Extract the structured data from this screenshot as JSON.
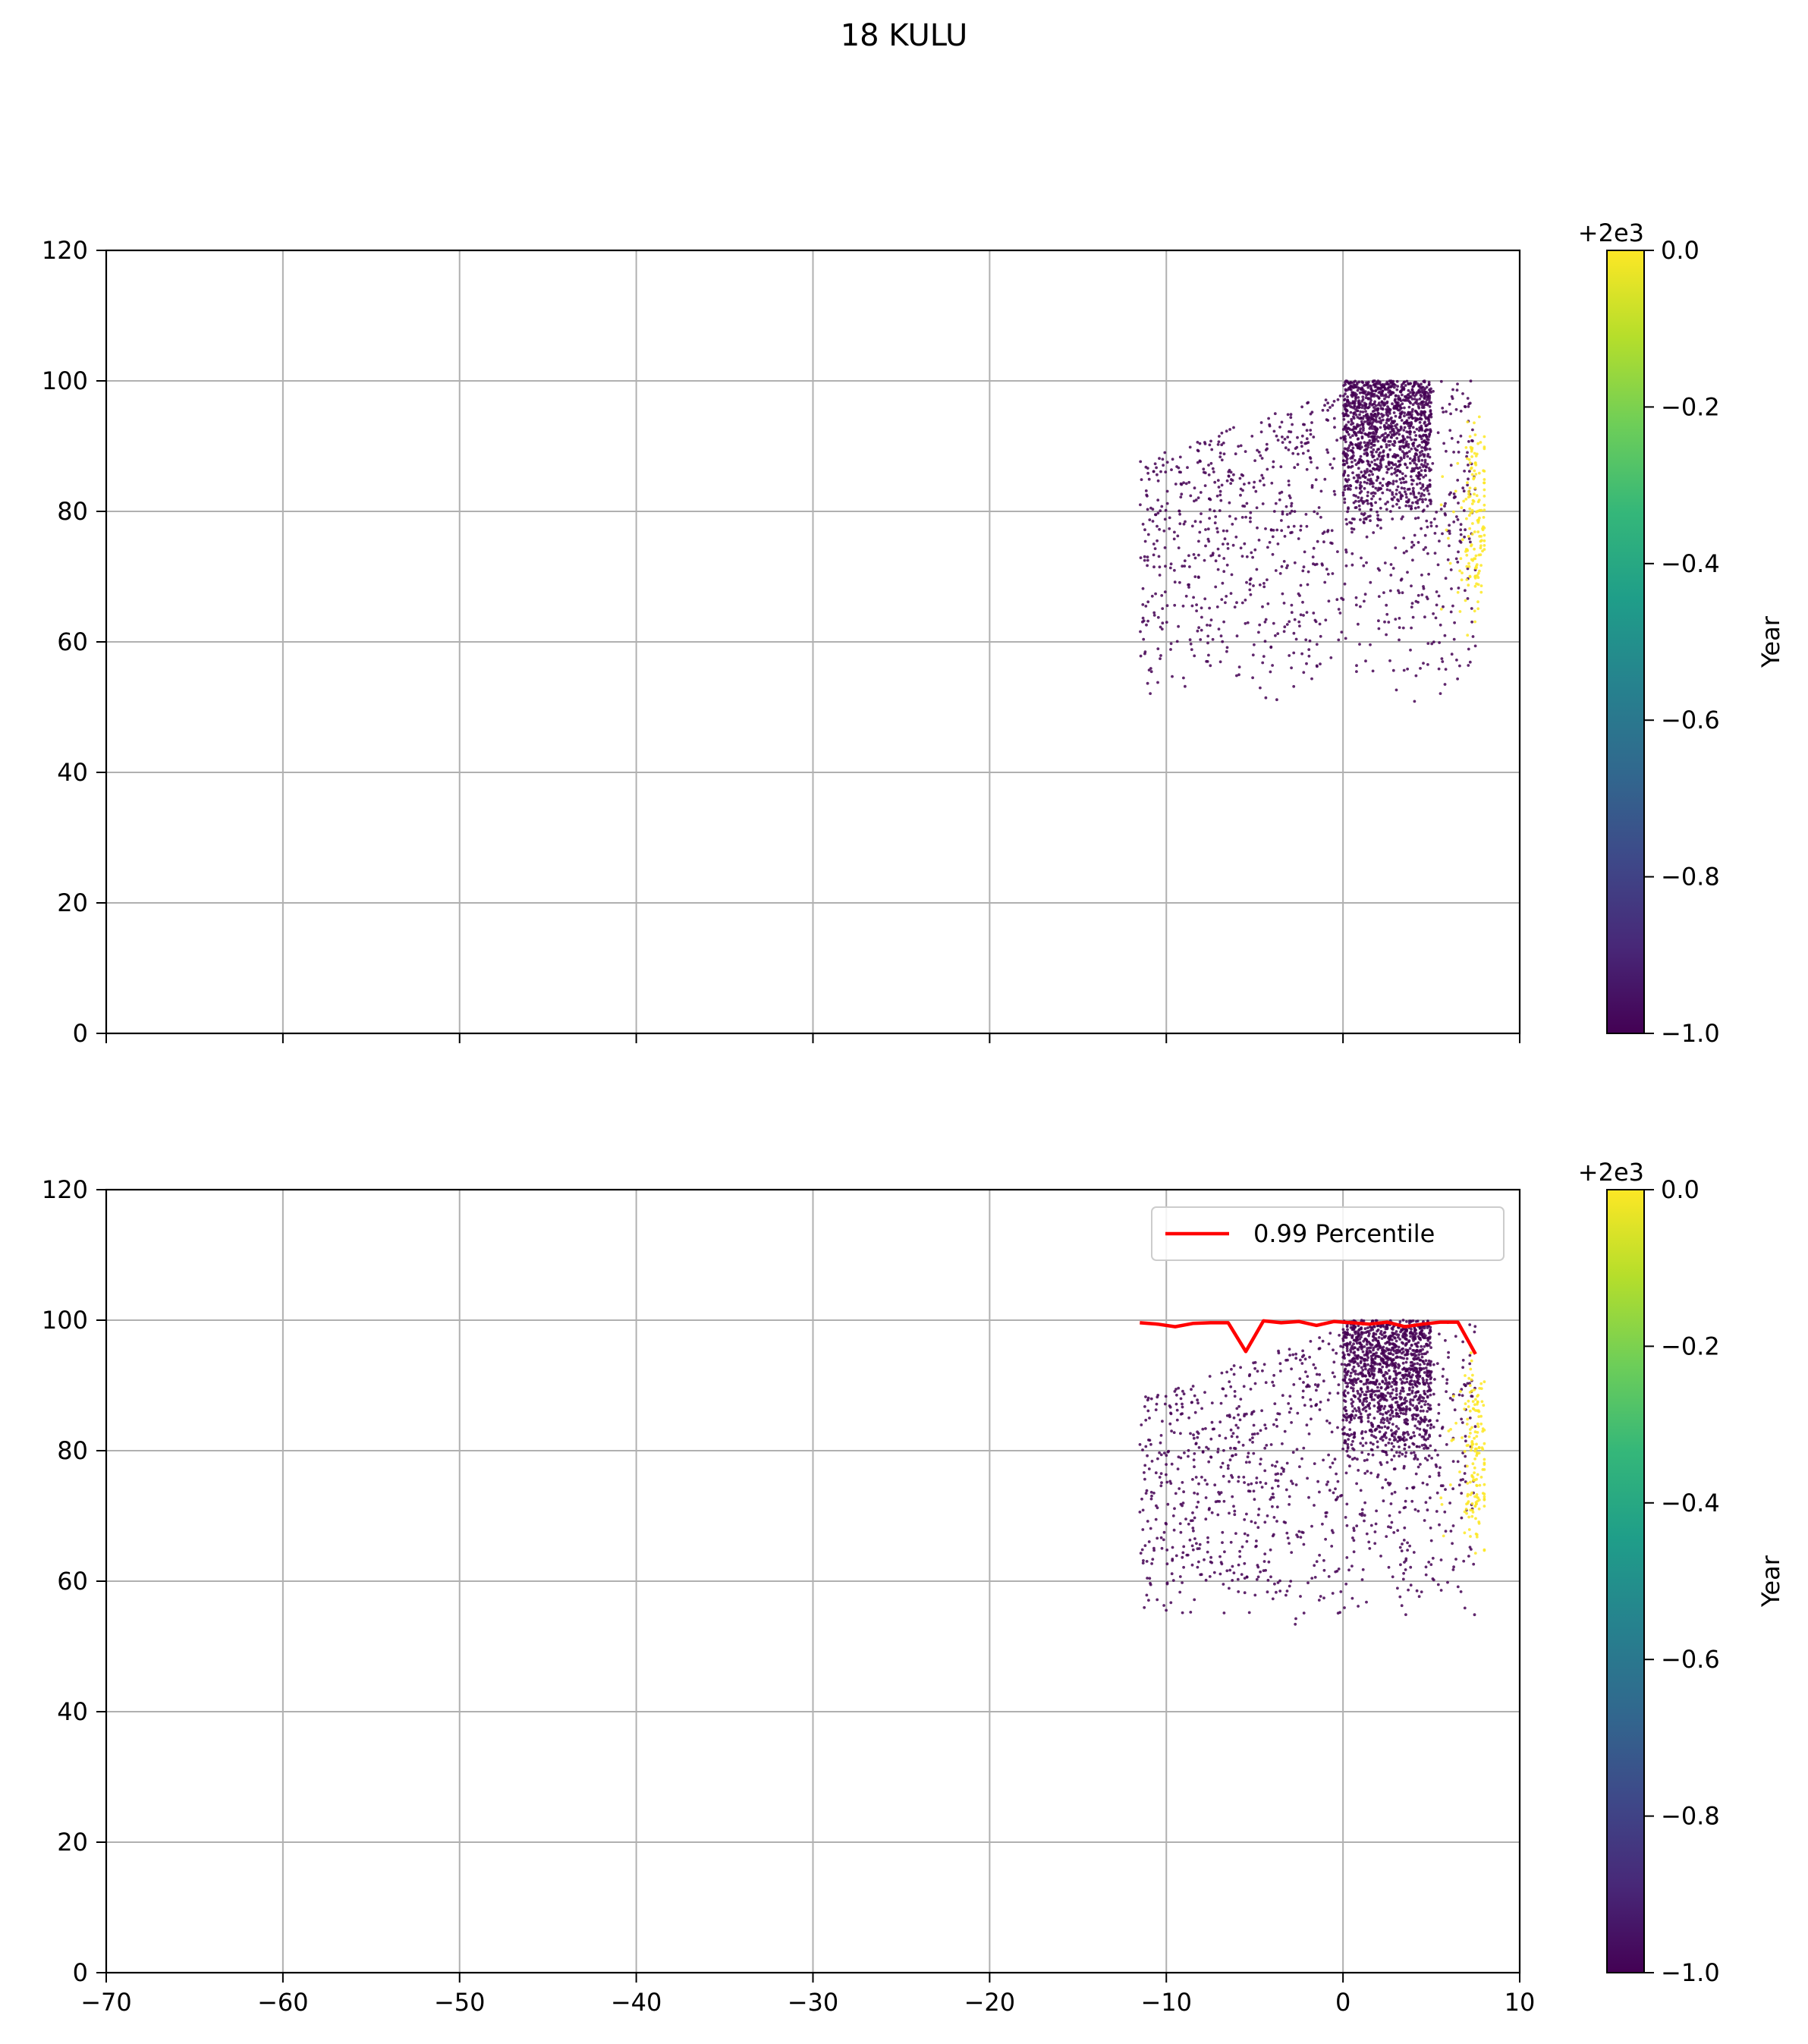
{
  "figure": {
    "suptitle": "18 KULU"
  },
  "colors": {
    "viridis": [
      "#440154",
      "#482878",
      "#3e4989",
      "#31688e",
      "#26828e",
      "#1f9e89",
      "#35b779",
      "#6ece58",
      "#b5de2b",
      "#fde725"
    ],
    "percentile_line": "#ff0000",
    "grid": "#b0b0b0"
  },
  "chart_data": [
    {
      "type": "scatter",
      "panel": "top",
      "title": "",
      "xlabel": "",
      "ylabel": "",
      "xlim": [
        -70,
        10
      ],
      "ylim": [
        0,
        120
      ],
      "xticks": [
        -70,
        -60,
        -50,
        -40,
        -30,
        -20,
        -10,
        0,
        10
      ],
      "yticks": [
        0,
        20,
        40,
        60,
        80,
        100,
        120
      ],
      "xtick_labels_visible": false,
      "grid": true,
      "point_groups": [
        {
          "color_value": -1.0,
          "color": "#440154",
          "x_range": [
            -11.5,
            7.5
          ],
          "y_range": [
            50,
            100
          ],
          "approx_count": 2200,
          "dense_core": {
            "x_range": [
              0,
              5
            ],
            "y_range": [
              78,
              100
            ]
          }
        },
        {
          "color_value": 0.0,
          "color": "#fde725",
          "x_range": [
            5.5,
            8
          ],
          "y_range": [
            57,
            95
          ],
          "approx_count": 160
        }
      ],
      "colorbar": {
        "label": "Year",
        "offset_label": "+2e3",
        "range": [
          -1.0,
          0.0
        ],
        "ticks": [
          -1.0,
          -0.8,
          -0.6,
          -0.4,
          -0.2,
          0.0
        ],
        "tick_labels": [
          "−1.0",
          "−0.8",
          "−0.6",
          "−0.4",
          "−0.2",
          "0.0"
        ],
        "colormap": "viridis"
      }
    },
    {
      "type": "scatter",
      "panel": "bottom",
      "title": "",
      "xlabel": "",
      "ylabel": "",
      "xlim": [
        -70,
        10
      ],
      "ylim": [
        0,
        120
      ],
      "xticks": [
        -70,
        -60,
        -50,
        -40,
        -30,
        -20,
        -10,
        0,
        10
      ],
      "xtick_labels": [
        "−70",
        "−60",
        "−50",
        "−40",
        "−30",
        "−20",
        "−10",
        "0",
        "10"
      ],
      "yticks": [
        0,
        20,
        40,
        60,
        80,
        100,
        120
      ],
      "grid": true,
      "legend": {
        "placement": "top-right",
        "entries": [
          "0.99 Percentile"
        ]
      },
      "point_groups": [
        {
          "color_value": -1.0,
          "color": "#440154",
          "x_range": [
            -11.5,
            7.5
          ],
          "y_range": [
            52,
            100
          ],
          "approx_count": 2200,
          "dense_core": {
            "x_range": [
              0,
              5
            ],
            "y_range": [
              78,
              100
            ]
          }
        },
        {
          "color_value": 0.0,
          "color": "#fde725",
          "x_range": [
            5.5,
            8
          ],
          "y_range": [
            57,
            95
          ],
          "approx_count": 160
        }
      ],
      "series": [
        {
          "name": "0.99 Percentile",
          "type": "line",
          "color": "#ff0000",
          "x": [
            -11.5,
            -10.5,
            -9.5,
            -8.5,
            -7.5,
            -6.5,
            -5.5,
            -4.5,
            -3.5,
            -2.5,
            -1.5,
            -0.5,
            0.5,
            1.5,
            2.5,
            3.5,
            4.5,
            5.5,
            6.5,
            7.5
          ],
          "y": [
            99.6,
            99.4,
            99.0,
            99.5,
            99.6,
            99.6,
            95.2,
            99.9,
            99.6,
            99.8,
            99.2,
            99.8,
            99.6,
            99.4,
            99.7,
            99.0,
            99.4,
            99.7,
            99.7,
            94.8
          ]
        }
      ],
      "colorbar": {
        "label": "Year",
        "offset_label": "+2e3",
        "range": [
          -1.0,
          0.0
        ],
        "ticks": [
          -1.0,
          -0.8,
          -0.6,
          -0.4,
          -0.2,
          0.0
        ],
        "tick_labels": [
          "−1.0",
          "−0.8",
          "−0.6",
          "−0.4",
          "−0.2",
          "0.0"
        ],
        "colormap": "viridis"
      }
    }
  ]
}
